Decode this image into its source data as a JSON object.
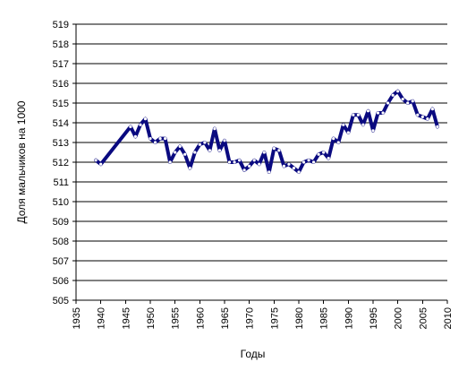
{
  "chart_data": {
    "type": "line",
    "title": "",
    "xlabel": "Годы",
    "ylabel": "Доля мальчиков на 1000",
    "xlim": [
      1935,
      2010
    ],
    "ylim": [
      505,
      519
    ],
    "x_ticks": [
      "1935",
      "1940",
      "1945",
      "1950",
      "1955",
      "1960",
      "1965",
      "1970",
      "1975",
      "1980",
      "1985",
      "1990",
      "1995",
      "2000",
      "2005",
      "2010"
    ],
    "y_ticks": [
      "505",
      "506",
      "507",
      "508",
      "509",
      "510",
      "511",
      "512",
      "513",
      "514",
      "515",
      "516",
      "517",
      "518",
      "519"
    ],
    "grid": "horizontal",
    "legend": "none",
    "colors": {
      "line": "#0a0a80",
      "marker_fill": "#ffffff",
      "axis": "#000000",
      "grid": "#000000"
    },
    "series": [
      {
        "x": [
          1939,
          1940,
          1946,
          1947,
          1948,
          1949,
          1950,
          1951,
          1952,
          1953,
          1954,
          1955,
          1956,
          1957,
          1958,
          1959,
          1960,
          1961,
          1962,
          1963,
          1964,
          1965,
          1966,
          1967,
          1968,
          1969,
          1970,
          1971,
          1972,
          1973,
          1974,
          1975,
          1976,
          1977,
          1978,
          1979,
          1980,
          1981,
          1982,
          1983,
          1984,
          1985,
          1986,
          1987,
          1988,
          1989,
          1990,
          1991,
          1992,
          1993,
          1994,
          1995,
          1996,
          1997,
          1998,
          1999,
          2000,
          2001,
          2002,
          2003,
          2004,
          2005,
          2006,
          2007,
          2008
        ],
        "y": [
          512.1,
          511.9,
          513.8,
          513.3,
          513.9,
          514.2,
          513.2,
          513.0,
          513.2,
          513.2,
          512.0,
          512.5,
          512.8,
          512.4,
          511.7,
          512.5,
          512.9,
          513.0,
          512.6,
          513.7,
          512.6,
          513.1,
          512.0,
          512.0,
          512.1,
          511.6,
          511.8,
          512.1,
          511.9,
          512.5,
          511.5,
          512.7,
          512.6,
          511.8,
          511.9,
          511.7,
          511.5,
          512.0,
          512.1,
          512.0,
          512.4,
          512.5,
          512.2,
          513.2,
          513.0,
          513.9,
          513.5,
          514.4,
          514.4,
          513.9,
          514.6,
          513.6,
          514.5,
          514.5,
          515.0,
          515.4,
          515.6,
          515.2,
          515.0,
          515.1,
          514.4,
          514.3,
          514.2,
          514.7,
          513.8
        ]
      }
    ]
  }
}
